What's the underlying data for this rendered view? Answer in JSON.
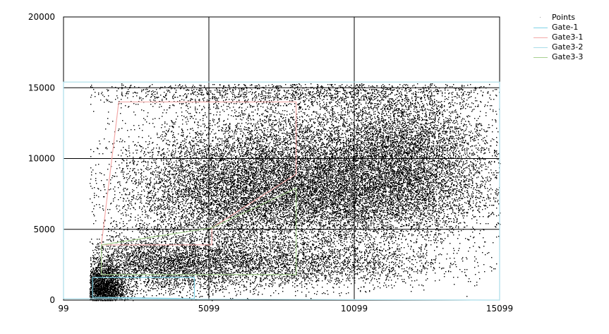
{
  "chart_data": {
    "type": "scatter",
    "title": "",
    "xlabel": "",
    "ylabel": "",
    "xlim": [
      99,
      15099
    ],
    "ylim": [
      0,
      20000
    ],
    "x_ticks": [
      "99",
      "5099",
      "10099",
      "15099"
    ],
    "y_ticks": [
      "0",
      "5000",
      "10000",
      "15000",
      "20000"
    ],
    "grid": true,
    "legend_position": "top-right",
    "points_series": {
      "name": "Points",
      "color": "#000000",
      "clusters": [
        {
          "cx": 8600,
          "cy": 9500,
          "sx": 2700,
          "sy": 2400,
          "n": 26000
        },
        {
          "cx": 9700,
          "cy": 7200,
          "sx": 2500,
          "sy": 1700,
          "n": 12000
        },
        {
          "cx": 5600,
          "cy": 7600,
          "sx": 1900,
          "sy": 2300,
          "n": 9000
        },
        {
          "cx": 1400,
          "cy": 700,
          "sx": 400,
          "sy": 900,
          "n": 3500
        },
        {
          "cx": 3500,
          "cy": 2600,
          "sx": 1600,
          "sy": 1000,
          "n": 3000
        },
        {
          "cx": 11800,
          "cy": 10500,
          "sx": 1500,
          "sy": 2500,
          "n": 5000
        },
        {
          "cx": 7600,
          "cy": 2600,
          "sx": 2800,
          "sy": 900,
          "n": 3200
        },
        {
          "cx": 7600,
          "cy": 14600,
          "sx": 4000,
          "sy": 500,
          "n": 1500
        }
      ]
    },
    "gates": [
      {
        "name": "Gate-1",
        "color": "#7fd3e6",
        "polygon": [
          [
            1100,
            200
          ],
          [
            1100,
            1600
          ],
          [
            4600,
            1600
          ],
          [
            4600,
            100
          ]
        ]
      },
      {
        "name": "Gate3-1",
        "color": "#f4a9a8",
        "polygon": [
          [
            1400,
            3900
          ],
          [
            2000,
            14000
          ],
          [
            8100,
            14000
          ],
          [
            8100,
            8900
          ],
          [
            5200,
            5100
          ],
          [
            5200,
            3900
          ]
        ]
      },
      {
        "name": "Gate3-2",
        "color": "#a9dde9",
        "polygon": [
          [
            99,
            100
          ],
          [
            99,
            15400
          ],
          [
            15099,
            15400
          ],
          [
            15099,
            0
          ]
        ]
      },
      {
        "name": "Gate3-3",
        "color": "#a6d08f",
        "polygon": [
          [
            1400,
            1800
          ],
          [
            8100,
            1800
          ],
          [
            8100,
            7900
          ],
          [
            5200,
            5100
          ],
          [
            1400,
            3900
          ]
        ]
      }
    ]
  }
}
